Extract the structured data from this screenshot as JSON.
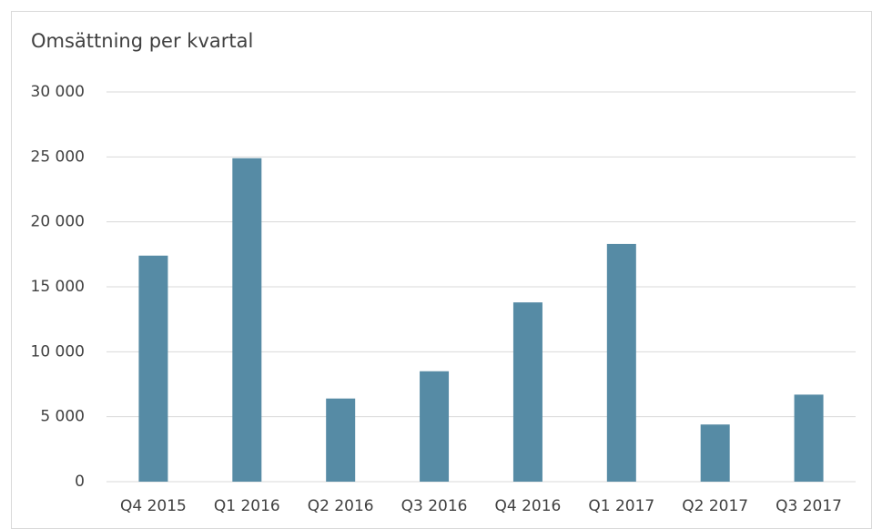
{
  "chart_data": {
    "type": "bar",
    "title": "Omsättning per kvartal",
    "categories": [
      "Q4 2015",
      "Q1 2016",
      "Q2 2016",
      "Q3 2016",
      "Q4 2016",
      "Q1 2017",
      "Q2 2017",
      "Q3 2017"
    ],
    "values": [
      17400,
      24900,
      6400,
      8500,
      13800,
      18300,
      4400,
      6700
    ],
    "color": "#568ba5",
    "ylim": [
      0,
      30000
    ],
    "yticks": [
      0,
      {
        "value": 5000,
        "label": "5 000"
      },
      {
        "value": 10000,
        "label": "10 000"
      },
      {
        "value": 15000,
        "label": "15 000"
      },
      {
        "value": 20000,
        "label": "20 000"
      },
      {
        "value": 25000,
        "label": "25 000"
      },
      {
        "value": 30000,
        "label": "30 000"
      }
    ],
    "grid": true
  }
}
